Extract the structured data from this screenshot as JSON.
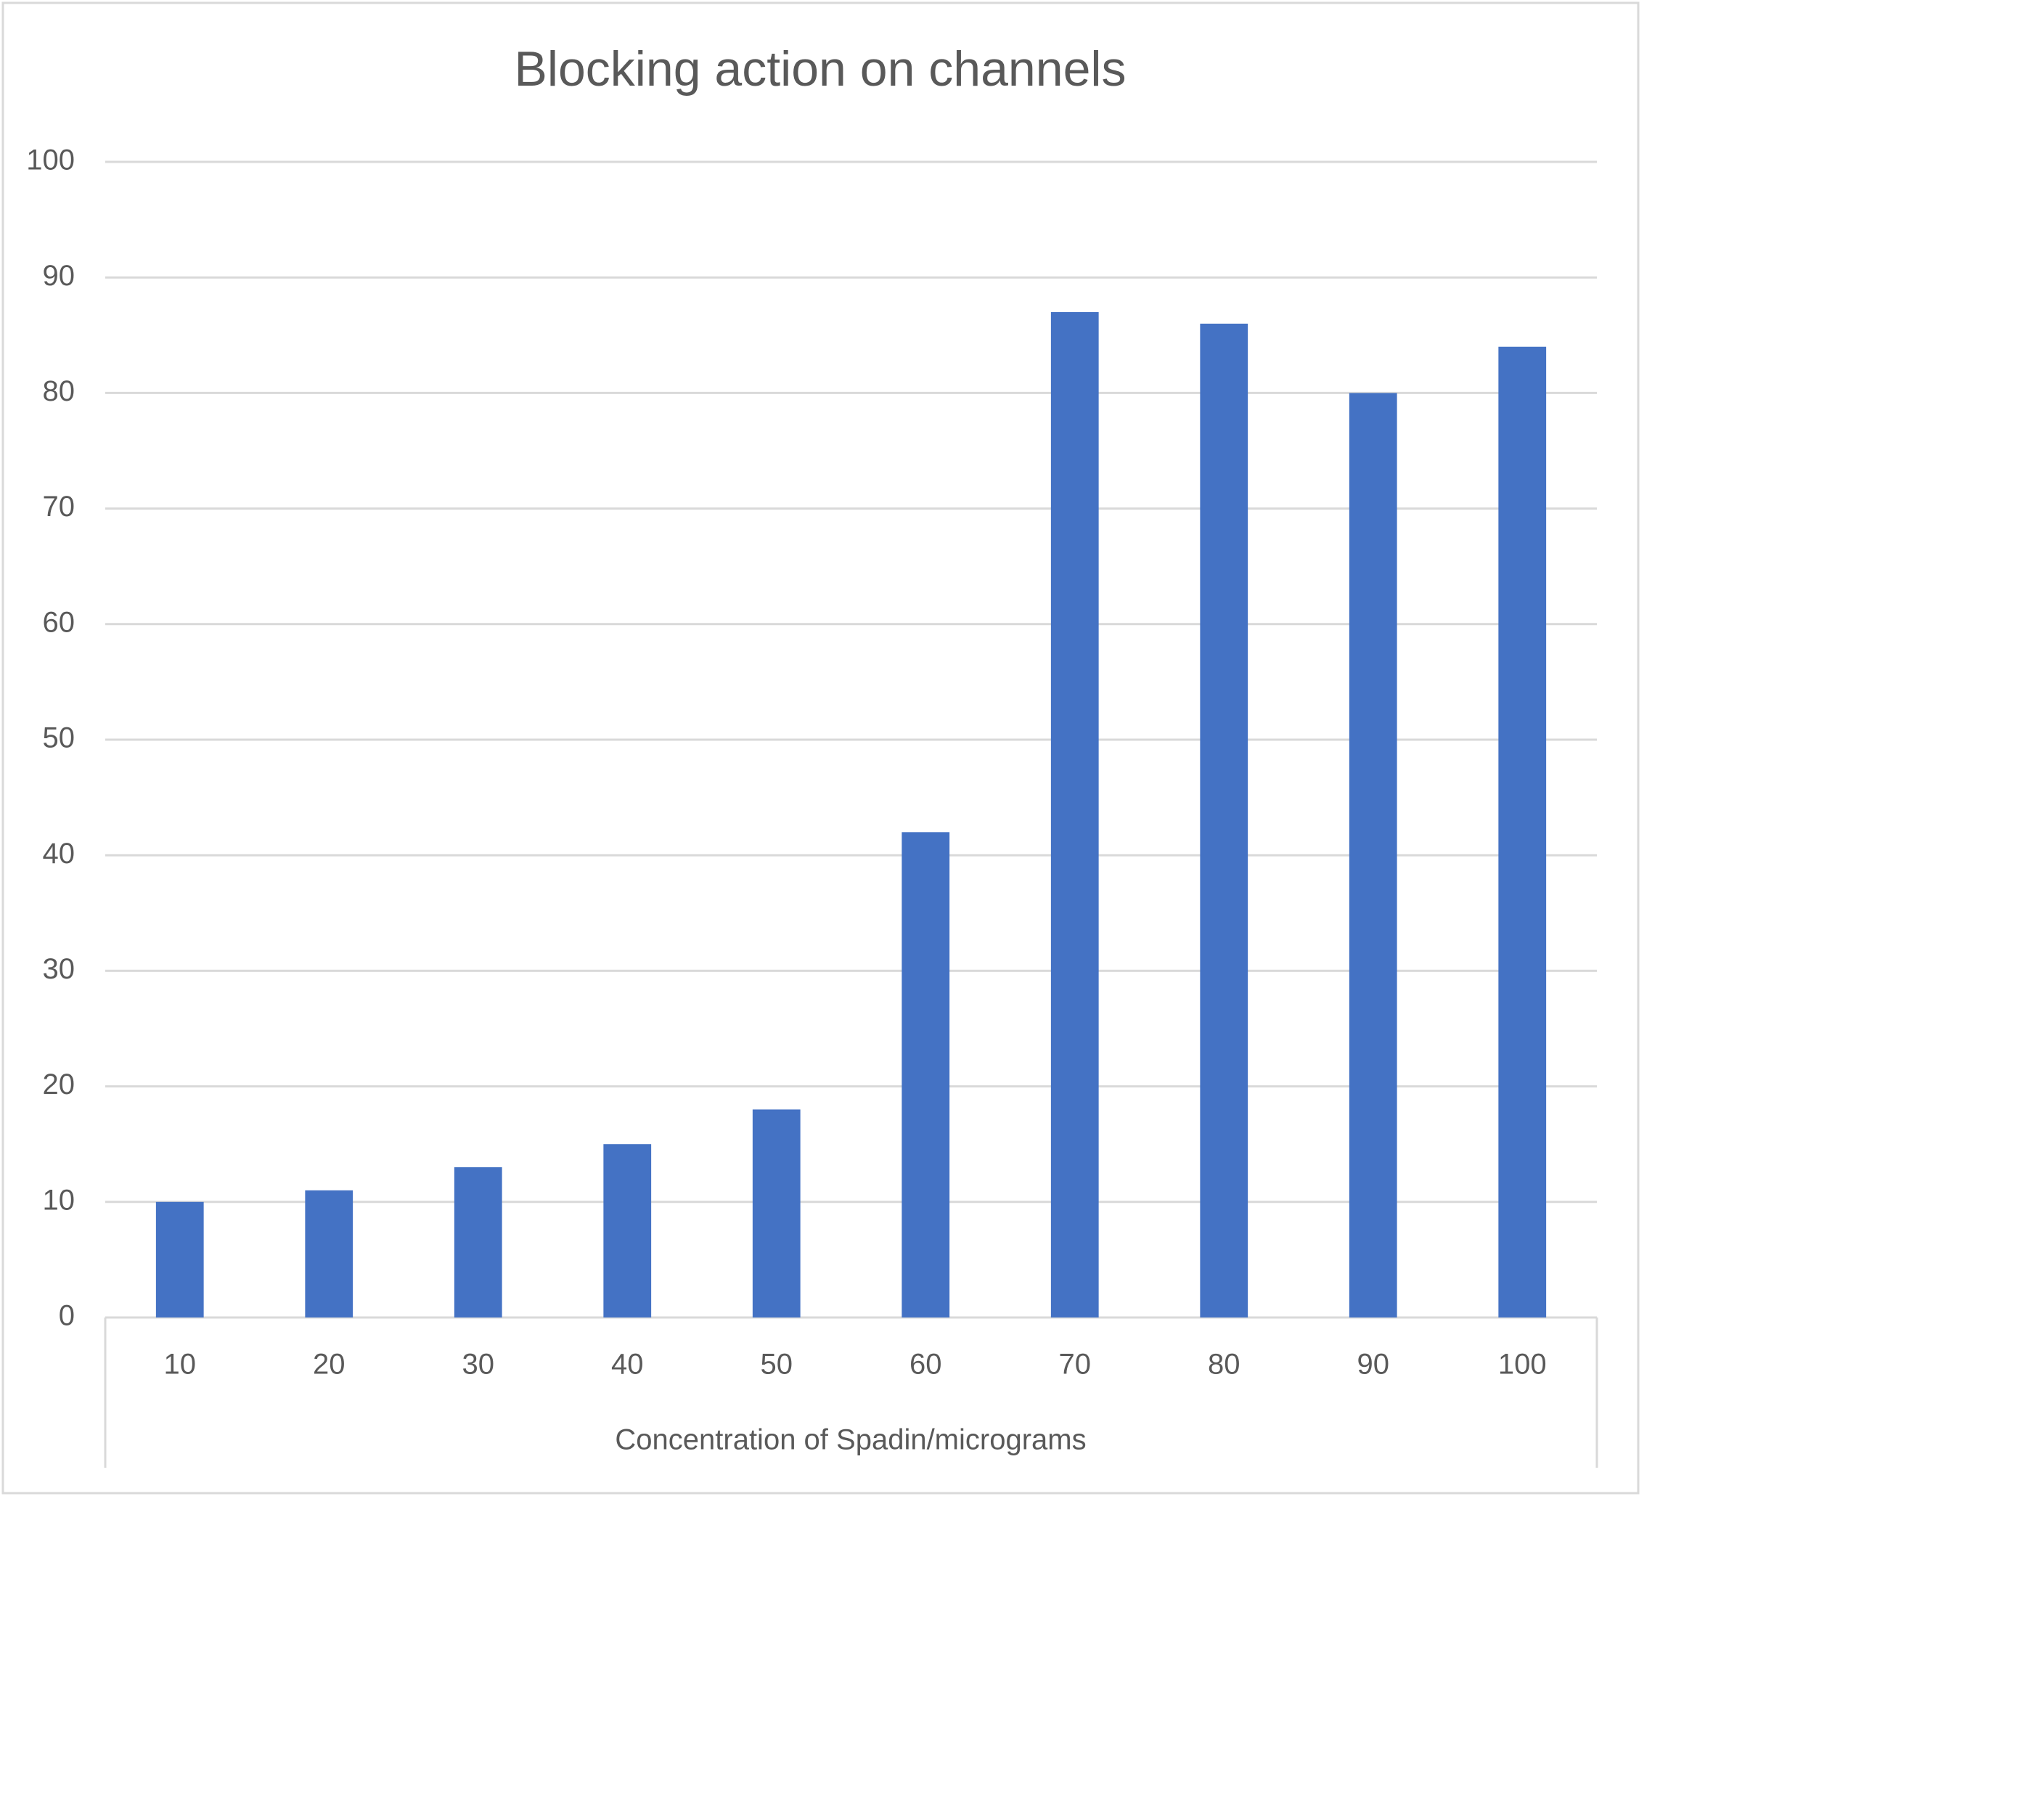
{
  "chart_data": {
    "type": "bar",
    "title": "Blocking action on  channels",
    "x_label": "Concentration of Spadin/micrograms",
    "categories": [
      "10",
      "20",
      "30",
      "40",
      "50",
      "60",
      "70",
      "80",
      "90",
      "100"
    ],
    "values": [
      10,
      11,
      13,
      15,
      18,
      42,
      87,
      86,
      80,
      84
    ],
    "color": "#4472c4",
    "ylim": [
      0,
      100
    ],
    "yticks": [
      0,
      10,
      20,
      30,
      40,
      50,
      60,
      70,
      80,
      90,
      100
    ],
    "grid": true
  }
}
